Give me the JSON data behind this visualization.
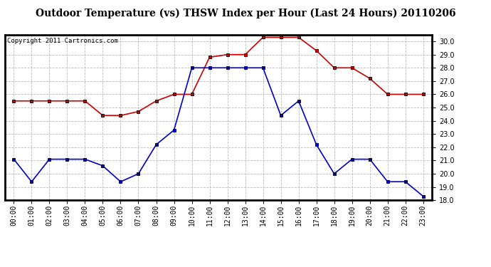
{
  "title": "Outdoor Temperature (vs) THSW Index per Hour (Last 24 Hours) 20110206",
  "copyright_text": "Copyright 2011 Cartronics.com",
  "hours": [
    "00:00",
    "01:00",
    "02:00",
    "03:00",
    "04:00",
    "05:00",
    "06:00",
    "07:00",
    "08:00",
    "09:00",
    "10:00",
    "11:00",
    "12:00",
    "13:00",
    "14:00",
    "15:00",
    "16:00",
    "17:00",
    "18:00",
    "19:00",
    "20:00",
    "21:00",
    "22:00",
    "23:00"
  ],
  "red_data": [
    25.5,
    25.5,
    25.5,
    25.5,
    25.5,
    24.4,
    24.4,
    24.7,
    25.5,
    26.0,
    26.0,
    28.8,
    29.0,
    29.0,
    30.3,
    30.3,
    30.3,
    29.3,
    28.0,
    28.0,
    27.2,
    26.0,
    26.0,
    26.0
  ],
  "blue_data": [
    21.1,
    19.4,
    21.1,
    21.1,
    21.1,
    20.6,
    19.4,
    20.0,
    22.2,
    23.3,
    28.0,
    28.0,
    28.0,
    28.0,
    28.0,
    24.4,
    25.5,
    22.2,
    20.0,
    21.1,
    21.1,
    19.4,
    19.4,
    18.3
  ],
  "red_color": "#cc0000",
  "blue_color": "#0000cc",
  "marker": "s",
  "marker_color": "black",
  "marker_size": 3,
  "ylim_min": 18.0,
  "ylim_max": 30.5,
  "bg_color": "#ffffff",
  "grid_color": "#bbbbbb",
  "title_fontsize": 10,
  "axis_label_fontsize": 7,
  "copyright_fontsize": 6.5,
  "yticks": [
    18.0,
    19.0,
    20.0,
    21.0,
    22.0,
    23.0,
    24.0,
    25.0,
    26.0,
    27.0,
    28.0,
    29.0,
    30.0
  ]
}
